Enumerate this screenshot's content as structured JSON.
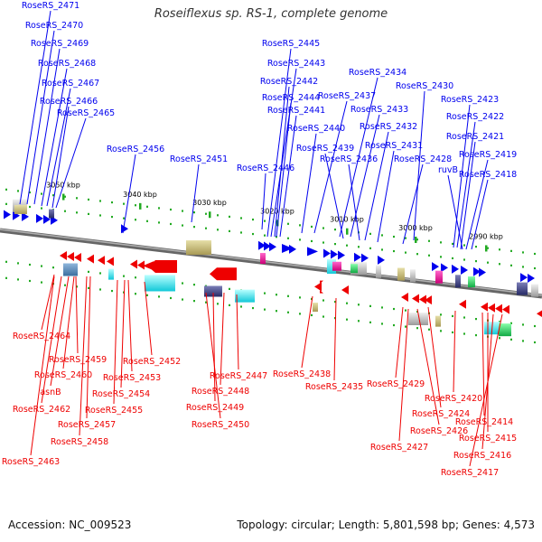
{
  "title": "Roseiflexus sp. RS-1, complete genome",
  "footer": {
    "accession": "Accession: NC_009523",
    "topology": "Topology: circular; Length: 5,801,598 bp; Genes: 4,573"
  },
  "colors": {
    "forward": "#0000ee",
    "reverse": "#ee0000",
    "backbone": "#888888",
    "tick": "#22aa22"
  },
  "kbp_labels": [
    "3050 kbp",
    "3040 kbp",
    "3030 kbp",
    "3020 kbp",
    "3010 kbp",
    "3000 kbp",
    "2990 kbp"
  ],
  "forward_genes": [
    "RoseRS_2471",
    "RoseRS_2470",
    "RoseRS_2469",
    "RoseRS_2468",
    "RoseRS_2467",
    "RoseRS_2466",
    "RoseRS_2465",
    "RoseRS_2456",
    "RoseRS_2451",
    "RoseRS_2446",
    "RoseRS_2445",
    "RoseRS_2443",
    "RoseRS_2442",
    "RoseRS_2444",
    "RoseRS_2441",
    "RoseRS_2440",
    "RoseRS_2437",
    "RoseRS_2434",
    "RoseRS_2433",
    "RoseRS_2439",
    "RoseRS_2436",
    "RoseRS_2432",
    "RoseRS_2431",
    "RoseRS_2430",
    "RoseRS_2428",
    "RoseRS_2423",
    "RoseRS_2422",
    "RoseRS_2421",
    "ruvB",
    "RoseRS_2419",
    "RoseRS_2418"
  ],
  "reverse_genes": [
    "RoseRS_2464",
    "RoseRS_2459",
    "RoseRS_2460",
    "asnB",
    "RoseRS_2462",
    "RoseRS_2457",
    "RoseRS_2458",
    "RoseRS_2463",
    "RoseRS_2455",
    "RoseRS_2454",
    "RoseRS_2453",
    "RoseRS_2452",
    "RoseRS_2450",
    "RoseRS_2449",
    "RoseRS_2448",
    "RoseRS_2447",
    "RoseRS_2438",
    "RoseRS_2435",
    "RoseRS_2429",
    "RoseRS_2426",
    "RoseRS_2427",
    "RoseRS_2424",
    "RoseRS_2420",
    "RoseRS_2414",
    "RoseRS_2415",
    "RoseRS_2416",
    "RoseRS_2417"
  ]
}
